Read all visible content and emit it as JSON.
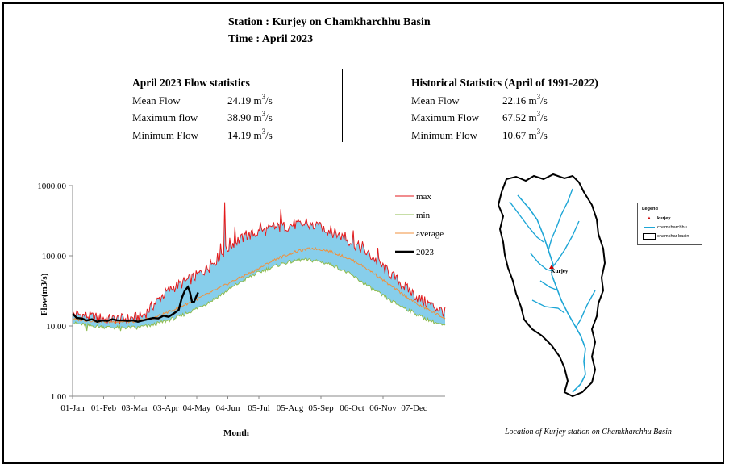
{
  "header": {
    "station_line": "Station : Kurjey on Chamkharchhu Basin",
    "time_line": "Time : April 2023"
  },
  "current_stats": {
    "title": "April 2023 Flow statistics",
    "unit_prefix": "m",
    "unit_exp": "3",
    "unit_suffix": "/s",
    "rows": [
      {
        "label": "Mean Flow",
        "value": "24.19"
      },
      {
        "label": "Maximum flow",
        "value": "38.90"
      },
      {
        "label": "Minimum Flow",
        "value": "14.19"
      }
    ]
  },
  "historical_stats": {
    "title": "Historical Statistics (April of 1991-2022)",
    "rows": [
      {
        "label": "Mean Flow",
        "value": "22.16"
      },
      {
        "label": "Maximum Flow",
        "value": "67.52"
      },
      {
        "label": "Minimum Flow",
        "value": "10.67"
      }
    ]
  },
  "chart_data": {
    "type": "line",
    "title": "",
    "xlabel": "Month",
    "ylabel": "Flow(m3/s)",
    "yscale": "log",
    "ylim": [
      1,
      1000
    ],
    "y_ticks": [
      "1.00",
      "10.00",
      "100.00",
      "1000.00"
    ],
    "x_ticks": [
      "01-Jan",
      "01-Feb",
      "03-Mar",
      "03-Apr",
      "04-May",
      "04-Jun",
      "05-Jul",
      "05-Aug",
      "05-Sep",
      "06-Oct",
      "06-Nov",
      "07-Dec"
    ],
    "xlim_day": [
      1,
      366
    ],
    "fill_color": "#87ceeb",
    "legend_position": "right",
    "series": [
      {
        "name": "max",
        "color": "#e31a1c",
        "points": [
          [
            1,
            15
          ],
          [
            20,
            13.5
          ],
          [
            40,
            12.5
          ],
          [
            60,
            13
          ],
          [
            70,
            14
          ],
          [
            80,
            20
          ],
          [
            90,
            28
          ],
          [
            100,
            36
          ],
          [
            110,
            42
          ],
          [
            120,
            50
          ],
          [
            135,
            70
          ],
          [
            145,
            100
          ],
          [
            160,
            160
          ],
          [
            175,
            200
          ],
          [
            190,
            230
          ],
          [
            205,
            260
          ],
          [
            220,
            280
          ],
          [
            235,
            270
          ],
          [
            250,
            240
          ],
          [
            265,
            190
          ],
          [
            280,
            140
          ],
          [
            295,
            95
          ],
          [
            310,
            60
          ],
          [
            325,
            38
          ],
          [
            340,
            25
          ],
          [
            355,
            19
          ],
          [
            365,
            16
          ]
        ],
        "spikes": [
          [
            136,
            90
          ],
          [
            146,
            150
          ],
          [
            150,
            580
          ],
          [
            155,
            180
          ],
          [
            160,
            260
          ],
          [
            171,
            230
          ],
          [
            185,
            300
          ],
          [
            198,
            300
          ],
          [
            205,
            460
          ],
          [
            218,
            330
          ],
          [
            230,
            340
          ],
          [
            243,
            300
          ],
          [
            254,
            270
          ],
          [
            268,
            220
          ],
          [
            276,
            230
          ],
          [
            285,
            160
          ],
          [
            300,
            130
          ]
        ]
      },
      {
        "name": "min",
        "color": "#8fbc4f",
        "points": [
          [
            1,
            11
          ],
          [
            20,
            10
          ],
          [
            40,
            9.5
          ],
          [
            60,
            9.5
          ],
          [
            75,
            10
          ],
          [
            90,
            11.5
          ],
          [
            105,
            13.5
          ],
          [
            120,
            17
          ],
          [
            135,
            22
          ],
          [
            150,
            30
          ],
          [
            165,
            42
          ],
          [
            180,
            55
          ],
          [
            195,
            68
          ],
          [
            210,
            80
          ],
          [
            225,
            88
          ],
          [
            240,
            85
          ],
          [
            255,
            75
          ],
          [
            270,
            58
          ],
          [
            285,
            42
          ],
          [
            300,
            30
          ],
          [
            315,
            22
          ],
          [
            330,
            17
          ],
          [
            345,
            13
          ],
          [
            365,
            10
          ]
        ],
        "dips": [
          [
            15,
            8.5
          ],
          [
            48,
            8.5
          ],
          [
            64,
            9
          ]
        ]
      },
      {
        "name": "average",
        "color": "#f0903c",
        "points": [
          [
            1,
            12.5
          ],
          [
            30,
            11.5
          ],
          [
            60,
            11.5
          ],
          [
            80,
            13
          ],
          [
            100,
            17
          ],
          [
            120,
            23
          ],
          [
            140,
            32
          ],
          [
            160,
            45
          ],
          [
            180,
            62
          ],
          [
            200,
            90
          ],
          [
            220,
            115
          ],
          [
            235,
            128
          ],
          [
            250,
            120
          ],
          [
            265,
            100
          ],
          [
            280,
            80
          ],
          [
            295,
            58
          ],
          [
            310,
            40
          ],
          [
            325,
            28
          ],
          [
            340,
            20
          ],
          [
            355,
            15.5
          ],
          [
            365,
            13
          ]
        ]
      },
      {
        "name": "2023",
        "color": "#000000",
        "points": [
          [
            1,
            15
          ],
          [
            5,
            13
          ],
          [
            10,
            12.8
          ],
          [
            15,
            12
          ],
          [
            20,
            12.5
          ],
          [
            25,
            11.5
          ],
          [
            30,
            12
          ],
          [
            35,
            11.8
          ],
          [
            40,
            12.5
          ],
          [
            45,
            12
          ],
          [
            50,
            12
          ],
          [
            55,
            11.8
          ],
          [
            60,
            12
          ],
          [
            65,
            11.5
          ],
          [
            70,
            12
          ],
          [
            75,
            12.5
          ],
          [
            80,
            13
          ],
          [
            85,
            12.8
          ],
          [
            90,
            14
          ],
          [
            95,
            13.5
          ],
          [
            100,
            15
          ],
          [
            105,
            17
          ],
          [
            108,
            25
          ],
          [
            111,
            32
          ],
          [
            114,
            36
          ],
          [
            116,
            30
          ],
          [
            118,
            22
          ],
          [
            120,
            22
          ],
          [
            122,
            26
          ],
          [
            124,
            30
          ]
        ]
      }
    ]
  },
  "map": {
    "station_label": "Kurjey",
    "legend": {
      "title": "Legend",
      "items": [
        {
          "label": "kurjey",
          "icon": "red-triangle-marker"
        },
        {
          "label": "chamkharchhu",
          "icon": "cyan-river-line"
        },
        {
          "label": "chamkhar basin",
          "icon": "black-outline-box"
        }
      ]
    },
    "caption": "Location of Kurjey station  on Chamkharchhu  Basin",
    "river_color": "#1ea6d6",
    "station_color": "#cc0000"
  }
}
